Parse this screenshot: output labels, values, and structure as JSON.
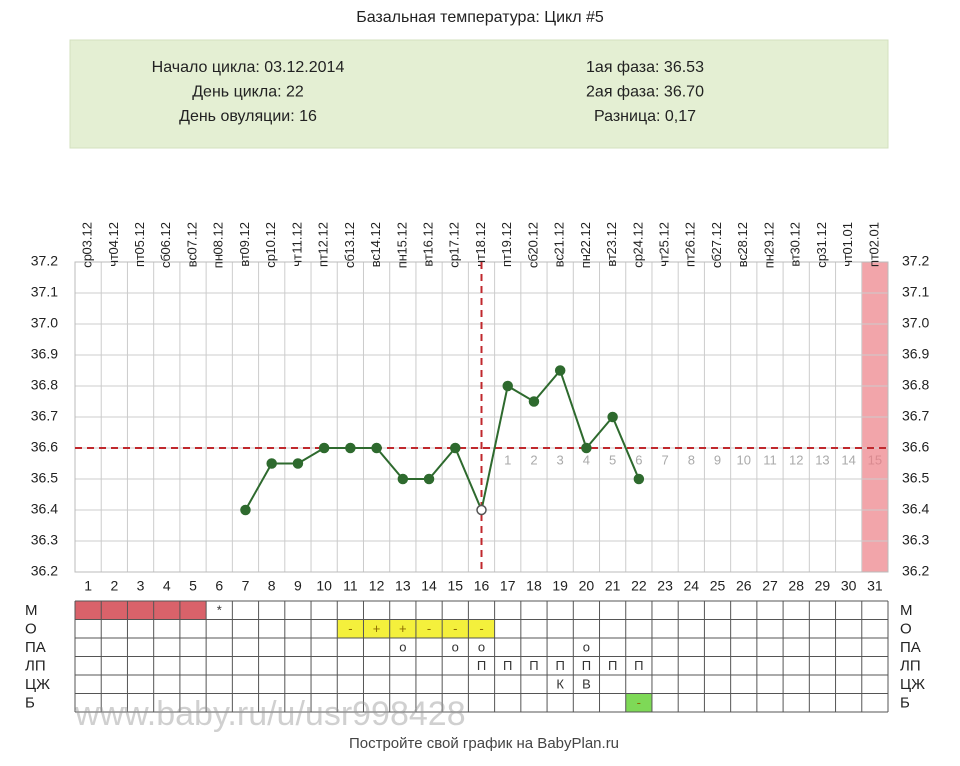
{
  "chart_data": {
    "type": "line",
    "title": "Базальная температура: Цикл #5",
    "info_left": [
      "Начало цикла: 03.12.2014",
      "День цикла: 22",
      "День овуляции: 16"
    ],
    "info_right": [
      "1ая фаза: 36.53",
      "2ая фаза: 36.70",
      "Разница: 0,17"
    ],
    "categories": [
      1,
      2,
      3,
      4,
      5,
      6,
      7,
      8,
      9,
      10,
      11,
      12,
      13,
      14,
      15,
      16,
      17,
      18,
      19,
      20,
      21,
      22,
      23,
      24,
      25,
      26,
      27,
      28,
      29,
      30,
      31
    ],
    "dates": [
      "03.12",
      "04.12",
      "05.12",
      "06.12",
      "07.12",
      "08.12",
      "09.12",
      "10.12",
      "11.12",
      "12.12",
      "13.12",
      "14.12",
      "15.12",
      "16.12",
      "17.12",
      "18.12",
      "19.12",
      "20.12",
      "21.12",
      "22.12",
      "23.12",
      "24.12",
      "25.12",
      "26.12",
      "27.12",
      "28.12",
      "29.12",
      "30.12",
      "31.12",
      "01.01",
      "02.01"
    ],
    "weekdays": [
      "ср",
      "чт",
      "пт",
      "сб",
      "вс",
      "пн",
      "вт",
      "ср",
      "чт",
      "пт",
      "сб",
      "вс",
      "пн",
      "вт",
      "ср",
      "чт",
      "пт",
      "сб",
      "вс",
      "пн",
      "вт",
      "ср",
      "чт",
      "пт",
      "сб",
      "вс",
      "пн",
      "вт",
      "ср",
      "чт",
      "пт"
    ],
    "series": [
      {
        "name": "Температура",
        "color": "#2e6a2e",
        "values": [
          null,
          null,
          null,
          null,
          null,
          null,
          36.4,
          36.55,
          36.55,
          36.6,
          36.6,
          36.6,
          36.5,
          36.5,
          36.6,
          36.4,
          36.8,
          36.75,
          36.85,
          36.6,
          36.7,
          36.5,
          null,
          null,
          null,
          null,
          null,
          null,
          null,
          null,
          null
        ]
      }
    ],
    "ylim": [
      36.2,
      37.2
    ],
    "yticks": [
      36.2,
      36.3,
      36.4,
      36.5,
      36.6,
      36.7,
      36.8,
      36.9,
      {
        "value": 37.0,
        "label": "37.0"
      },
      37.1,
      37.2
    ],
    "grid": true,
    "coverline": 36.6,
    "ovulation_day": 16,
    "highlight_day": 31,
    "luteal_day_labels": [
      "1",
      "2",
      "3",
      "4",
      "5",
      "6",
      "7",
      "8",
      "9",
      "10",
      "11",
      "12",
      "13",
      "14",
      "15"
    ],
    "table_rows": [
      {
        "label": "М",
        "entries": [
          {
            "day": 1,
            "fill": "#d9626a"
          },
          {
            "day": 2,
            "fill": "#d9626a"
          },
          {
            "day": 3,
            "fill": "#d9626a"
          },
          {
            "day": 4,
            "fill": "#d9626a"
          },
          {
            "day": 5,
            "fill": "#d9626a"
          },
          {
            "day": 6,
            "text": "*"
          }
        ]
      },
      {
        "label": "О",
        "entries": [
          {
            "day": 11,
            "text": "-",
            "fill": "#f4f03c"
          },
          {
            "day": 12,
            "text": "+",
            "fill": "#f4f03c"
          },
          {
            "day": 13,
            "text": "+",
            "fill": "#f4f03c"
          },
          {
            "day": 14,
            "text": "-",
            "fill": "#f4f03c"
          },
          {
            "day": 15,
            "text": "-",
            "fill": "#f4f03c"
          },
          {
            "day": 16,
            "text": "-",
            "fill": "#f4f03c"
          }
        ]
      },
      {
        "label": "ПА",
        "entries": [
          {
            "day": 13,
            "text": "о"
          },
          {
            "day": 15,
            "text": "о"
          },
          {
            "day": 16,
            "text": "о"
          },
          {
            "day": 20,
            "text": "о"
          }
        ]
      },
      {
        "label": "ЛП",
        "entries": [
          {
            "day": 16,
            "text": "П"
          },
          {
            "day": 17,
            "text": "П"
          },
          {
            "day": 18,
            "text": "П"
          },
          {
            "day": 19,
            "text": "П"
          },
          {
            "day": 20,
            "text": "П"
          },
          {
            "day": 21,
            "text": "П"
          },
          {
            "day": 22,
            "text": "П"
          }
        ]
      },
      {
        "label": "ЦЖ",
        "entries": [
          {
            "day": 19,
            "text": "К"
          },
          {
            "day": 20,
            "text": "В"
          }
        ]
      },
      {
        "label": "Б",
        "entries": [
          {
            "day": 22,
            "text": "-",
            "fill": "#7ed957"
          }
        ]
      }
    ],
    "watermark": "www.baby.ru/u/usr998428",
    "footer": "Постройте свой график на BabyPlan.ru"
  }
}
